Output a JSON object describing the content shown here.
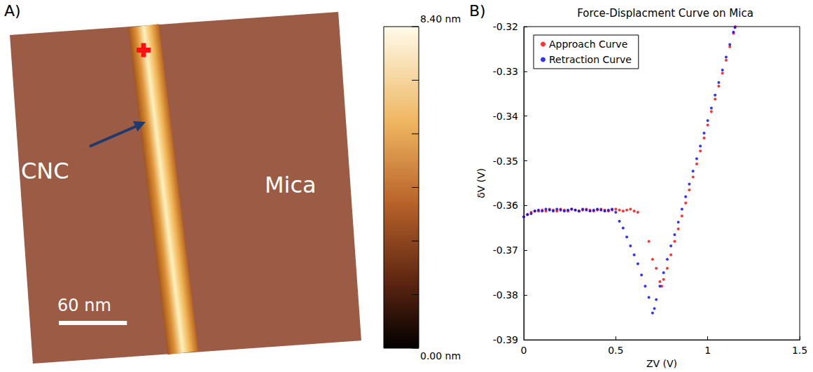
{
  "chart_data": [
    {
      "type": "afm_image",
      "panel": "A)",
      "annotations": [
        {
          "text": "CNC"
        },
        {
          "text": "Mica"
        }
      ],
      "marker": "cross",
      "scale_bar": {
        "label": "60 nm",
        "value": 60
      },
      "field_nm": 290,
      "colorbar": {
        "range": [
          0,
          8.4
        ],
        "tick_marks": [
          0,
          1.4,
          2.8,
          4.2,
          5.6,
          7,
          8.4
        ],
        "labels": [
          {
            "value": 8.4,
            "label": "8.40 nm"
          },
          {
            "value": 0,
            "label": "0.00 nm"
          }
        ]
      }
    },
    {
      "type": "scatter",
      "panel": "B)",
      "title": "Force-Displacment Curve on Mica",
      "xlabel": "ZV (V)",
      "ylabel": "δV (V)",
      "xlim": [
        0,
        1.5
      ],
      "xticks": [
        0,
        0.5,
        1,
        1.5
      ],
      "ylim": [
        -0.39,
        -0.32
      ],
      "yticks": [
        -0.39,
        -0.38,
        -0.37,
        -0.36,
        -0.35,
        -0.34,
        -0.33,
        -0.32
      ],
      "grid": false,
      "legend": "upper left",
      "marker": "dot",
      "series": [
        {
          "name": "Approach Curve",
          "color": "#ff0000",
          "x": [
            0,
            0.02,
            0.04,
            0.06,
            0.08,
            0.1,
            0.12,
            0.14,
            0.16,
            0.18,
            0.2,
            0.22,
            0.24,
            0.26,
            0.28,
            0.3,
            0.32,
            0.34,
            0.36,
            0.38,
            0.4,
            0.42,
            0.44,
            0.46,
            0.48,
            0.5,
            0.52,
            0.54,
            0.56,
            0.58,
            0.6,
            0.62,
            0.68,
            0.7,
            0.72,
            0.74,
            0.75,
            0.76,
            0.78,
            0.8,
            0.82,
            0.84,
            0.86,
            0.88,
            0.9,
            0.92,
            0.94,
            0.96,
            0.98,
            1,
            1.02,
            1.04,
            1.06,
            1.08,
            1.1,
            1.12,
            1.14,
            1.15
          ],
          "values": [
            -0.3625,
            -0.362,
            -0.3615,
            -0.3612,
            -0.3612,
            -0.361,
            -0.3612,
            -0.3608,
            -0.361,
            -0.3612,
            -0.3608,
            -0.361,
            -0.3612,
            -0.3608,
            -0.361,
            -0.3612,
            -0.361,
            -0.3608,
            -0.361,
            -0.3612,
            -0.361,
            -0.3608,
            -0.361,
            -0.3612,
            -0.361,
            -0.3608,
            -0.361,
            -0.3612,
            -0.361,
            -0.3608,
            -0.3612,
            -0.3615,
            -0.368,
            -0.372,
            -0.374,
            -0.377,
            -0.378,
            -0.3765,
            -0.374,
            -0.371,
            -0.368,
            -0.3652,
            -0.3623,
            -0.3594,
            -0.3565,
            -0.3536,
            -0.3507,
            -0.3478,
            -0.3449,
            -0.342,
            -0.339,
            -0.3362,
            -0.3333,
            -0.3304,
            -0.3275,
            -0.3245,
            -0.3215,
            -0.32
          ]
        },
        {
          "name": "Retraction Curve",
          "color": "#0000ff",
          "x": [
            0,
            0.02,
            0.04,
            0.06,
            0.08,
            0.1,
            0.12,
            0.14,
            0.16,
            0.18,
            0.2,
            0.22,
            0.24,
            0.26,
            0.28,
            0.3,
            0.32,
            0.34,
            0.36,
            0.38,
            0.4,
            0.42,
            0.44,
            0.46,
            0.48,
            0.5,
            0.52,
            0.54,
            0.56,
            0.58,
            0.6,
            0.62,
            0.64,
            0.66,
            0.68,
            0.7,
            0.71,
            0.72,
            0.74,
            0.76,
            0.78,
            0.8,
            0.82,
            0.84,
            0.86,
            0.88,
            0.9,
            0.92,
            0.94,
            0.96,
            0.98,
            1,
            1.02,
            1.04,
            1.06,
            1.08,
            1.1,
            1.12,
            1.14,
            1.148
          ],
          "values": [
            -0.3625,
            -0.362,
            -0.3618,
            -0.3612,
            -0.361,
            -0.3612,
            -0.3608,
            -0.361,
            -0.3612,
            -0.3608,
            -0.361,
            -0.3612,
            -0.361,
            -0.3608,
            -0.361,
            -0.3612,
            -0.3608,
            -0.361,
            -0.3612,
            -0.361,
            -0.3608,
            -0.361,
            -0.3612,
            -0.361,
            -0.3608,
            -0.3615,
            -0.3635,
            -0.365,
            -0.367,
            -0.369,
            -0.371,
            -0.373,
            -0.3755,
            -0.378,
            -0.3805,
            -0.384,
            -0.383,
            -0.381,
            -0.378,
            -0.375,
            -0.372,
            -0.369,
            -0.3665,
            -0.3637,
            -0.3608,
            -0.358,
            -0.3552,
            -0.3523,
            -0.3495,
            -0.3467,
            -0.3438,
            -0.341,
            -0.3382,
            -0.3353,
            -0.3325,
            -0.3297,
            -0.3268,
            -0.324,
            -0.3212,
            -0.3202
          ]
        }
      ]
    }
  ]
}
